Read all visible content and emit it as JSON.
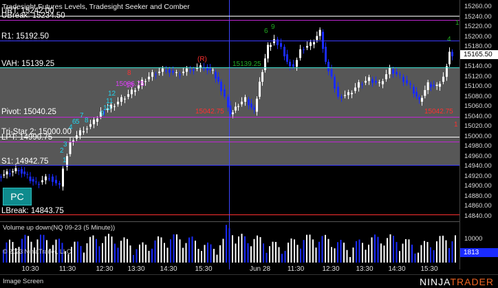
{
  "chart_title": "Tradesight Futures Levels, Tradesight Seeker and Comber",
  "levels": [
    {
      "label": "UBreak: 15234.50",
      "price": 15234.5,
      "color": "#c026d3"
    },
    {
      "label": "URT: 15242.00",
      "price": 15242.0,
      "color": "#ffffff"
    },
    {
      "label": "R1: 15192.50",
      "price": 15192.5,
      "color": "#3b3bff"
    },
    {
      "label": "VAH: 15139.25",
      "price": 15139.25,
      "color": "#40e0d0"
    },
    {
      "label": "Pivot: 15040.25",
      "price": 15040.25,
      "color": "#c026d3"
    },
    {
      "label": "Tri-Star 2: 15000.00",
      "price": 15000.0,
      "color": "#ffffff"
    },
    {
      "label": "LPT: 14990.75",
      "price": 14990.75,
      "color": "#c026d3"
    },
    {
      "label": "S1: 14942.75",
      "price": 14942.75,
      "color": "#3b3bff"
    },
    {
      "label": "LBreak: 14843.75",
      "price": 14843.75,
      "color": "#ff3030"
    }
  ],
  "chart_annotations": [
    {
      "text": "(R)",
      "color": "#ff3030"
    },
    {
      "text": "8",
      "color": "#ff3030"
    },
    {
      "text": "15139.25",
      "color": "#22aa22"
    },
    {
      "text": "15042.75",
      "color": "#ff3030"
    },
    {
      "text": "15042.75",
      "color": "#ff3030"
    },
    {
      "text": "15086.75",
      "color": "#e040fb"
    },
    {
      "text": "13",
      "color": "#e040fb"
    },
    {
      "text": "12",
      "color": "#22d3ee"
    },
    {
      "text": "11",
      "color": "#22d3ee"
    },
    {
      "text": "10",
      "color": "#22d3ee"
    },
    {
      "text": "9",
      "color": "#22d3ee"
    },
    {
      "text": "8",
      "color": "#22d3ee"
    },
    {
      "text": "7",
      "color": "#22d3ee"
    },
    {
      "text": "6",
      "color": "#22d3ee"
    },
    {
      "text": "5",
      "color": "#22d3ee"
    },
    {
      "text": "4",
      "color": "#22d3ee"
    },
    {
      "text": "3",
      "color": "#22d3ee"
    },
    {
      "text": "2",
      "color": "#22d3ee"
    },
    {
      "text": "1",
      "color": "#22d3ee"
    },
    {
      "text": "6",
      "color": "#22aa22"
    },
    {
      "text": "9",
      "color": "#22aa22"
    },
    {
      "text": "1",
      "color": "#22aa22"
    },
    {
      "text": "4",
      "color": "#22aa22"
    },
    {
      "text": "1",
      "color": "#ff3030"
    }
  ],
  "pc_button": "PC",
  "volume_title": "Volume up down(NQ 09-23 (5 Minute))",
  "copyright": "© 2023 NinjaTrader, LLC",
  "price_axis": [
    "15260.00",
    "15240.00",
    "15220.00",
    "15200.00",
    "15180.00",
    "15160.00",
    "15140.00",
    "15120.00",
    "15100.00",
    "15080.00",
    "15060.00",
    "15040.00",
    "15020.00",
    "15000.00",
    "14980.00",
    "14960.00",
    "14940.00",
    "14920.00",
    "14900.00",
    "14880.00",
    "14860.00",
    "14840.00"
  ],
  "last_price": "15165.50",
  "volume_axis": "10000",
  "last_volume": "1813",
  "time_axis": [
    "10:30",
    "11:30",
    "12:30",
    "13:30",
    "14:30",
    "15:30",
    "Jun 28",
    "11:30",
    "12:30",
    "13:30",
    "14:30",
    "15:30"
  ],
  "footer_label": "Image Screen",
  "brand_part1": "NINJA",
  "brand_part2": "TRADER",
  "colors": {
    "value_area_fill": "#5a5a5a",
    "up_candle": "#ffffff",
    "down_candle": "#1a2bff",
    "volume_bar_up": "#ffffff",
    "volume_bar_down": "#1a2bff"
  }
}
